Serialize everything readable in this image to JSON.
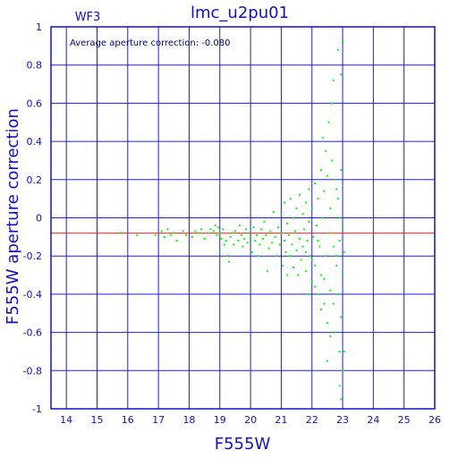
{
  "chart_data": {
    "type": "scatter",
    "title": "lmc_u2pu01",
    "subtitle": "WF3",
    "annotation": "Average aperture correction:  -0.080",
    "xlabel": "F555W",
    "ylabel": "F555W aperture correction",
    "xlim": [
      13.5,
      26
    ],
    "ylim": [
      -1,
      1
    ],
    "x_ticks": [
      "14",
      "15",
      "16",
      "17",
      "18",
      "19",
      "20",
      "21",
      "22",
      "23",
      "24",
      "25",
      "26"
    ],
    "y_ticks": [
      "1",
      "0.8",
      "0.6",
      "0.4",
      "0.2",
      "0",
      "-0.2",
      "-0.4",
      "-0.6",
      "-0.8",
      "-1"
    ],
    "grid": true,
    "reference_line": {
      "y": -0.08,
      "color": "#ff2020"
    },
    "colors": {
      "axis": "#1010cc",
      "grid": "#2020cc",
      "points": "#00ff00",
      "text": "#1010cc"
    },
    "points": [
      [
        15.8,
        -0.08
      ],
      [
        16.3,
        -0.09
      ],
      [
        16.9,
        -0.09
      ],
      [
        17.1,
        -0.07
      ],
      [
        17.2,
        -0.1
      ],
      [
        17.3,
        -0.06
      ],
      [
        17.4,
        -0.09
      ],
      [
        17.5,
        -0.08
      ],
      [
        17.6,
        -0.12
      ],
      [
        17.8,
        -0.07
      ],
      [
        17.9,
        -0.09
      ],
      [
        18.1,
        -0.1
      ],
      [
        18.2,
        -0.07
      ],
      [
        18.3,
        -0.08
      ],
      [
        18.4,
        -0.06
      ],
      [
        18.5,
        -0.11
      ],
      [
        18.6,
        -0.08
      ],
      [
        18.7,
        -0.06
      ],
      [
        18.8,
        -0.07
      ],
      [
        18.85,
        -0.04
      ],
      [
        18.9,
        -0.09
      ],
      [
        18.95,
        -0.05
      ],
      [
        19.0,
        -0.08
      ],
      [
        19.05,
        -0.11
      ],
      [
        19.1,
        -0.06
      ],
      [
        19.15,
        -0.14
      ],
      [
        19.2,
        -0.12
      ],
      [
        19.25,
        -0.2
      ],
      [
        19.3,
        -0.23
      ],
      [
        19.35,
        -0.1
      ],
      [
        19.4,
        -0.08
      ],
      [
        19.45,
        -0.14
      ],
      [
        19.5,
        -0.07
      ],
      [
        19.6,
        -0.12
      ],
      [
        19.65,
        -0.04
      ],
      [
        19.7,
        -0.09
      ],
      [
        19.75,
        -0.15
      ],
      [
        19.8,
        -0.11
      ],
      [
        19.85,
        -0.06
      ],
      [
        19.9,
        -0.13
      ],
      [
        19.95,
        -0.08
      ],
      [
        20.0,
        -0.1
      ],
      [
        20.05,
        -0.18
      ],
      [
        20.1,
        -0.05
      ],
      [
        20.15,
        -0.12
      ],
      [
        20.2,
        -0.09
      ],
      [
        20.25,
        -0.2
      ],
      [
        20.3,
        -0.14
      ],
      [
        20.35,
        -0.06
      ],
      [
        20.4,
        -0.11
      ],
      [
        20.45,
        -0.02
      ],
      [
        20.5,
        -0.09
      ],
      [
        20.55,
        -0.28
      ],
      [
        20.6,
        -0.16
      ],
      [
        20.65,
        -0.07
      ],
      [
        20.7,
        -0.13
      ],
      [
        20.75,
        0.03
      ],
      [
        20.8,
        -0.1
      ],
      [
        20.85,
        -0.2
      ],
      [
        20.9,
        -0.05
      ],
      [
        20.95,
        -0.14
      ],
      [
        21.0,
        -0.08
      ],
      [
        21.0,
        0.02
      ],
      [
        21.05,
        -0.25
      ],
      [
        21.1,
        -0.12
      ],
      [
        21.1,
        0.08
      ],
      [
        21.15,
        -0.18
      ],
      [
        21.2,
        -0.03
      ],
      [
        21.2,
        -0.3
      ],
      [
        21.25,
        -0.09
      ],
      [
        21.3,
        0.1
      ],
      [
        21.3,
        -0.2
      ],
      [
        21.35,
        -0.14
      ],
      [
        21.4,
        0.0
      ],
      [
        21.4,
        -0.26
      ],
      [
        21.45,
        -0.07
      ],
      [
        21.5,
        0.05
      ],
      [
        21.5,
        -0.17
      ],
      [
        21.55,
        -0.3
      ],
      [
        21.6,
        -0.11
      ],
      [
        21.6,
        0.12
      ],
      [
        21.65,
        -0.22
      ],
      [
        21.7,
        0.02
      ],
      [
        21.7,
        -0.15
      ],
      [
        21.75,
        -0.06
      ],
      [
        21.8,
        0.08
      ],
      [
        21.8,
        -0.28
      ],
      [
        21.85,
        -0.12
      ],
      [
        21.9,
        0.15
      ],
      [
        21.9,
        -0.02
      ],
      [
        21.95,
        -0.2
      ],
      [
        22.0,
        0.05
      ],
      [
        22.0,
        -0.33
      ],
      [
        22.05,
        -0.1
      ],
      [
        22.1,
        0.18
      ],
      [
        22.1,
        -0.25
      ],
      [
        22.15,
        -0.04
      ],
      [
        22.2,
        0.1
      ],
      [
        22.2,
        -0.4
      ],
      [
        22.25,
        -0.15
      ],
      [
        22.3,
        0.25
      ],
      [
        22.3,
        -0.3
      ],
      [
        22.35,
        0.0
      ],
      [
        22.4,
        0.14
      ],
      [
        22.4,
        -0.45
      ],
      [
        22.45,
        -0.2
      ],
      [
        22.5,
        0.22
      ],
      [
        22.5,
        -0.55
      ],
      [
        22.55,
        -0.08
      ],
      [
        22.6,
        0.05
      ],
      [
        22.6,
        -0.38
      ],
      [
        22.65,
        0.3
      ],
      [
        22.7,
        -0.15
      ],
      [
        22.7,
        0.72
      ],
      [
        22.75,
        -0.6
      ],
      [
        22.8,
        0.15
      ],
      [
        22.8,
        -0.25
      ],
      [
        22.85,
        0.88
      ],
      [
        22.85,
        -0.4
      ],
      [
        22.9,
        0.0
      ],
      [
        22.9,
        -0.7
      ],
      [
        22.95,
        0.75
      ],
      [
        22.95,
        -0.52
      ],
      [
        23.0,
        0.92
      ],
      [
        23.0,
        -0.3
      ],
      [
        23.0,
        -0.8
      ],
      [
        22.95,
        -0.95
      ],
      [
        22.9,
        -0.88
      ],
      [
        23.05,
        -0.7
      ],
      [
        22.8,
        -0.2
      ],
      [
        22.7,
        -0.45
      ],
      [
        22.6,
        -0.62
      ],
      [
        22.5,
        -0.75
      ],
      [
        22.4,
        -0.32
      ],
      [
        22.3,
        -0.48
      ],
      [
        22.2,
        -0.12
      ],
      [
        22.1,
        -0.36
      ],
      [
        22.0,
        -0.22
      ],
      [
        21.9,
        -0.4
      ],
      [
        21.8,
        -0.18
      ],
      [
        22.45,
        0.35
      ],
      [
        22.35,
        0.42
      ],
      [
        22.55,
        0.5
      ],
      [
        22.65,
        0.6
      ],
      [
        22.75,
        0.2
      ],
      [
        22.85,
        0.1
      ],
      [
        22.95,
        0.25
      ],
      [
        23.05,
        -0.18
      ],
      [
        23.0,
        -0.05
      ],
      [
        22.9,
        -0.12
      ]
    ]
  }
}
